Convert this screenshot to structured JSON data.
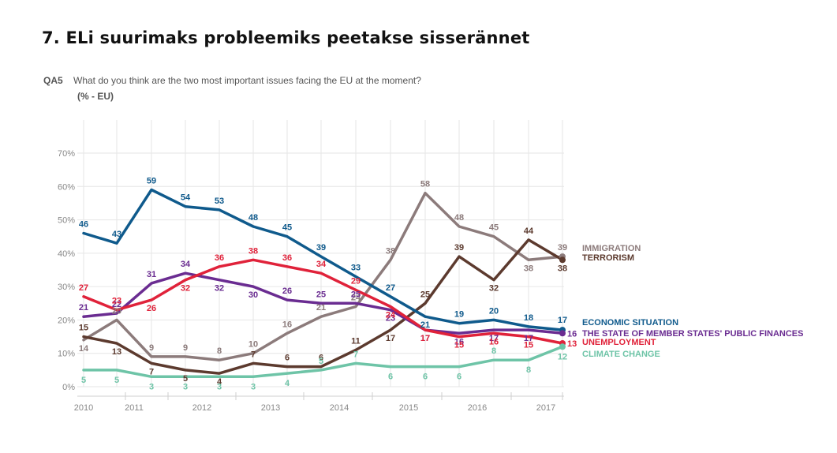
{
  "header": {
    "title": "7. ELi suurimaks probleemiks peetakse sisserännet",
    "question_code": "QA5",
    "question": "What do you think are the two most important issues facing the EU at the moment?",
    "unit": "(% - EU)"
  },
  "chart_data": {
    "type": "line",
    "ylim": [
      0,
      70
    ],
    "y_ticks": [
      "0%",
      "10%",
      "20%",
      "30%",
      "40%",
      "50%",
      "60%",
      "70%"
    ],
    "x_ticks": [
      "2010",
      "2011",
      "2012",
      "2013",
      "2014",
      "2015",
      "2016",
      "2017"
    ],
    "grid": true,
    "legend_placement": "right, end of lines",
    "n_points": 15,
    "series": [
      {
        "name": "IMMIGRATION",
        "color": "#8c7b7b",
        "values": [
          14,
          20,
          9,
          9,
          8,
          10,
          16,
          21,
          24,
          38,
          58,
          48,
          45,
          38,
          39
        ]
      },
      {
        "name": "TERRORISM",
        "color": "#5c3a2e",
        "values": [
          15,
          13,
          7,
          5,
          4,
          7,
          6,
          6,
          11,
          17,
          25,
          39,
          32,
          44,
          38
        ]
      },
      {
        "name": "ECONOMIC SITUATION",
        "color": "#0f5a8c",
        "values": [
          46,
          43,
          59,
          54,
          53,
          48,
          45,
          39,
          33,
          27,
          21,
          19,
          20,
          18,
          17
        ]
      },
      {
        "name": "THE STATE OF MEMBER STATES' PUBLIC FINANCES",
        "color": "#6a2c91",
        "values": [
          21,
          22,
          31,
          34,
          32,
          30,
          26,
          25,
          25,
          23,
          17,
          16,
          17,
          17,
          16
        ]
      },
      {
        "name": "UNEMPLOYMENT",
        "color": "#e0223a",
        "values": [
          27,
          23,
          26,
          32,
          36,
          38,
          36,
          34,
          29,
          24,
          17,
          15,
          16,
          15,
          13
        ]
      },
      {
        "name": "CLIMATE CHANGE",
        "color": "#6ec4a7",
        "values": [
          5,
          5,
          3,
          3,
          3,
          3,
          4,
          5,
          7,
          6,
          6,
          6,
          8,
          8,
          12
        ]
      }
    ]
  }
}
